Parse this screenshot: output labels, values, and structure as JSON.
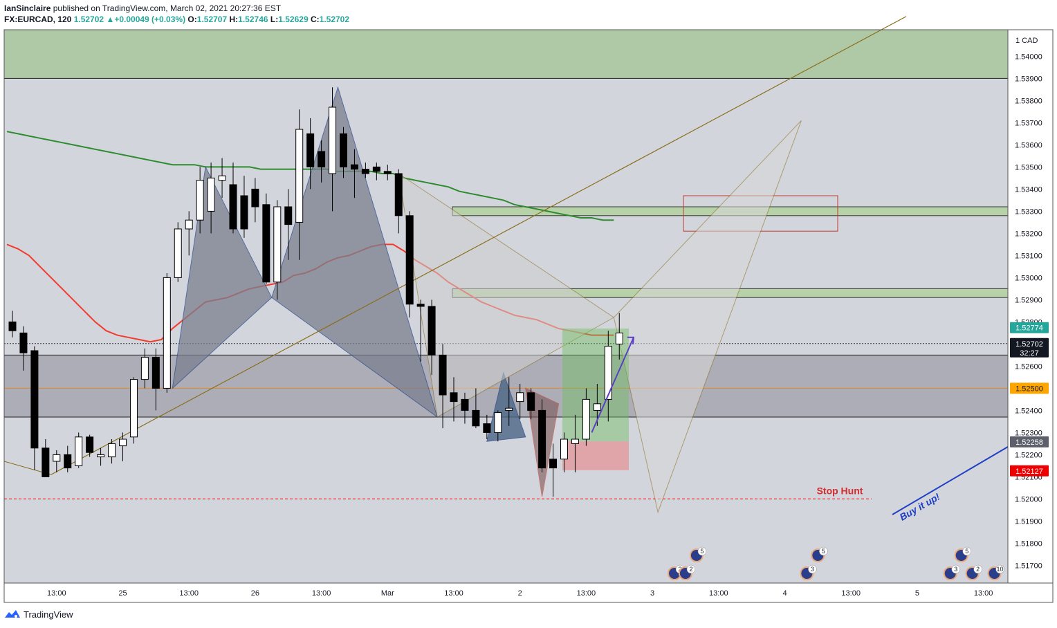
{
  "header": {
    "publisher": "IanSinclaire",
    "published_text": "published on TradingView.com, March 02, 2021 20:27:36 EST",
    "symbol": "FX:EURCAD, 120",
    "last": "1.52702",
    "change": "+0.00049 (+0.03%)",
    "o_label": "O:",
    "o_val": "1.52707",
    "h_label": "H:",
    "h_val": "1.52746",
    "l_label": "L:",
    "l_val": "1.52629",
    "c_label": "C:",
    "c_val": "1.52702"
  },
  "footer": {
    "brand": "TradingView"
  },
  "chart_data": {
    "type": "candlestick",
    "currency_label": "1 CAD",
    "ylim": [
      1.5162,
      1.5412
    ],
    "y_ticks": [
      "1.54000",
      "1.53900",
      "1.53800",
      "1.53700",
      "1.53600",
      "1.53500",
      "1.53400",
      "1.53300",
      "1.53200",
      "1.53100",
      "1.53000",
      "1.52900",
      "1.52800",
      "1.52600",
      "1.52400",
      "1.52300",
      "1.52200",
      "1.52100",
      "1.52000",
      "1.51900",
      "1.51800",
      "1.51700"
    ],
    "x_ticks": [
      {
        "label": "13:00",
        "i": 4
      },
      {
        "label": "25",
        "i": 10
      },
      {
        "label": "13:00",
        "i": 16
      },
      {
        "label": "26",
        "i": 22
      },
      {
        "label": "13:00",
        "i": 28
      },
      {
        "label": "Mar",
        "i": 34
      },
      {
        "label": "13:00",
        "i": 40
      },
      {
        "label": "2",
        "i": 46
      },
      {
        "label": "13:00",
        "i": 52
      },
      {
        "label": "3",
        "i": 58
      },
      {
        "label": "13:00",
        "i": 64
      },
      {
        "label": "4",
        "i": 70
      },
      {
        "label": "13:00",
        "i": 76
      },
      {
        "label": "5",
        "i": 82
      },
      {
        "label": "13:00",
        "i": 88
      }
    ],
    "candles": [
      [
        1.528,
        1.5285,
        1.5273,
        1.5276
      ],
      [
        1.5275,
        1.5278,
        1.5258,
        1.5266
      ],
      [
        1.5267,
        1.5269,
        1.5213,
        1.5223
      ],
      [
        1.5223,
        1.5227,
        1.5211,
        1.521
      ],
      [
        1.5217,
        1.5222,
        1.5212,
        1.522
      ],
      [
        1.522,
        1.5224,
        1.5212,
        1.5214
      ],
      [
        1.5215,
        1.523,
        1.5214,
        1.5228
      ],
      [
        1.5228,
        1.5229,
        1.5219,
        1.5221
      ],
      [
        1.5219,
        1.5223,
        1.5215,
        1.522
      ],
      [
        1.5219,
        1.5227,
        1.5216,
        1.5225
      ],
      [
        1.5224,
        1.523,
        1.5217,
        1.5227
      ],
      [
        1.5228,
        1.5255,
        1.5225,
        1.5254
      ],
      [
        1.5254,
        1.5268,
        1.525,
        1.5264
      ],
      [
        1.5264,
        1.5268,
        1.524,
        1.525
      ],
      [
        1.525,
        1.5302,
        1.5248,
        1.53
      ],
      [
        1.53,
        1.5325,
        1.5298,
        1.5322
      ],
      [
        1.5322,
        1.533,
        1.531,
        1.5326
      ],
      [
        1.5326,
        1.535,
        1.532,
        1.5344
      ],
      [
        1.533,
        1.5352,
        1.532,
        1.5345
      ],
      [
        1.5344,
        1.5354,
        1.5336,
        1.5346
      ],
      [
        1.5342,
        1.5352,
        1.532,
        1.5322
      ],
      [
        1.5337,
        1.5346,
        1.5318,
        1.5322
      ],
      [
        1.534,
        1.5345,
        1.5325,
        1.5332
      ],
      [
        1.5333,
        1.5338,
        1.5297,
        1.5298
      ],
      [
        1.5298,
        1.5335,
        1.529,
        1.5332
      ],
      [
        1.5332,
        1.534,
        1.5308,
        1.5324
      ],
      [
        1.5325,
        1.5376,
        1.5308,
        1.5367
      ],
      [
        1.5365,
        1.5372,
        1.534,
        1.535
      ],
      [
        1.5357,
        1.5362,
        1.5343,
        1.535
      ],
      [
        1.5347,
        1.5386,
        1.533,
        1.5377
      ],
      [
        1.5365,
        1.5368,
        1.5345,
        1.535
      ],
      [
        1.5351,
        1.5358,
        1.5336,
        1.5349
      ],
      [
        1.5349,
        1.5352,
        1.5345,
        1.5347
      ],
      [
        1.535,
        1.5352,
        1.5344,
        1.5348
      ],
      [
        1.5348,
        1.5351,
        1.5344,
        1.5347
      ],
      [
        1.5347,
        1.5349,
        1.532,
        1.5328
      ],
      [
        1.5328,
        1.533,
        1.5282,
        1.5288
      ],
      [
        1.5288,
        1.529,
        1.5262,
        1.5287
      ],
      [
        1.5287,
        1.529,
        1.5256,
        1.5265
      ],
      [
        1.5265,
        1.527,
        1.5232,
        1.5247
      ],
      [
        1.5248,
        1.5255,
        1.5235,
        1.5244
      ],
      [
        1.5245,
        1.5248,
        1.5234,
        1.524
      ],
      [
        1.524,
        1.525,
        1.5232,
        1.5233
      ],
      [
        1.5234,
        1.5238,
        1.5227,
        1.523
      ],
      [
        1.523,
        1.524,
        1.5226,
        1.5239
      ],
      [
        1.524,
        1.5255,
        1.5233,
        1.5241
      ],
      [
        1.5244,
        1.5252,
        1.5236,
        1.5248
      ],
      [
        1.5248,
        1.525,
        1.5236,
        1.524
      ],
      [
        1.524,
        1.5245,
        1.5212,
        1.5214
      ],
      [
        1.5218,
        1.5225,
        1.5201,
        1.5214
      ],
      [
        1.5218,
        1.523,
        1.5212,
        1.5227
      ],
      [
        1.5225,
        1.5238,
        1.5212,
        1.5227
      ],
      [
        1.5227,
        1.525,
        1.5224,
        1.5245
      ],
      [
        1.524,
        1.5252,
        1.5233,
        1.5243
      ],
      [
        1.5245,
        1.5276,
        1.5235,
        1.5269
      ],
      [
        1.527,
        1.5284,
        1.5263,
        1.5275
      ]
    ],
    "indicators": {
      "ema_red": [
        1.5315,
        1.5313,
        1.531,
        1.5305,
        1.53,
        1.5295,
        1.529,
        1.5285,
        1.528,
        1.5276,
        1.5274,
        1.5273,
        1.5272,
        1.5271,
        1.5272,
        1.5277,
        1.5281,
        1.5285,
        1.5289,
        1.529,
        1.5291,
        1.5293,
        1.5295,
        1.5296,
        1.5297,
        1.5298,
        1.5301,
        1.5302,
        1.5304,
        1.5307,
        1.5309,
        1.531,
        1.5312,
        1.5314,
        1.5315,
        1.5315,
        1.5312,
        1.5308,
        1.5305,
        1.5302,
        1.5298,
        1.5295,
        1.5292,
        1.5289,
        1.5287,
        1.5285,
        1.5283,
        1.5282,
        1.5281,
        1.5279,
        1.5277,
        1.5276,
        1.5275,
        1.5274,
        1.5274,
        1.5274
      ],
      "sma_green": [
        1.5366,
        1.5365,
        1.5364,
        1.5363,
        1.5362,
        1.5361,
        1.536,
        1.5359,
        1.5358,
        1.5357,
        1.5356,
        1.5355,
        1.5354,
        1.5353,
        1.5352,
        1.5351,
        1.5351,
        1.5351,
        1.535,
        1.535,
        1.535,
        1.535,
        1.535,
        1.5349,
        1.5349,
        1.5349,
        1.5349,
        1.5349,
        1.5349,
        1.5349,
        1.5348,
        1.5348,
        1.5348,
        1.5348,
        1.5347,
        1.5347,
        1.5345,
        1.5344,
        1.5343,
        1.5342,
        1.5341,
        1.5339,
        1.5338,
        1.5337,
        1.5336,
        1.5335,
        1.5333,
        1.5332,
        1.5331,
        1.533,
        1.5329,
        1.5328,
        1.5327,
        1.5327,
        1.5326,
        1.5326
      ]
    },
    "price_labels": [
      {
        "value": "1.52774",
        "color": "#26a69a",
        "price": 1.52774
      },
      {
        "value": "1.52702",
        "sub": "32:27",
        "color": "#131722",
        "price": 1.52702
      },
      {
        "value": "1.52500",
        "color": "#ffa500",
        "text_color": "#131722",
        "price": 1.525
      },
      {
        "value": "1.52258",
        "color": "#5d606b",
        "price": 1.52258
      },
      {
        "value": "1.52127",
        "color": "#ef0000",
        "price": 1.52127
      }
    ],
    "annotations": {
      "stop_hunt": "Stop Hunt",
      "buy_it_up": "Buy it up!"
    },
    "event_badges": [
      {
        "i": 60,
        "count": "2"
      },
      {
        "i": 61,
        "count": "2"
      },
      {
        "i": 62,
        "count": "5"
      },
      {
        "i": 72,
        "count": "3"
      },
      {
        "i": 73,
        "count": "5"
      },
      {
        "i": 85,
        "count": "3"
      },
      {
        "i": 86,
        "count": "5"
      },
      {
        "i": 87,
        "count": "2"
      },
      {
        "i": 89,
        "count": "10"
      }
    ],
    "colors": {
      "up_candle": "#ffffff",
      "down_candle": "#000000",
      "ema": "#f23b2c",
      "sma": "#2e8b2e",
      "harmonic": "#8a6d1a"
    }
  }
}
